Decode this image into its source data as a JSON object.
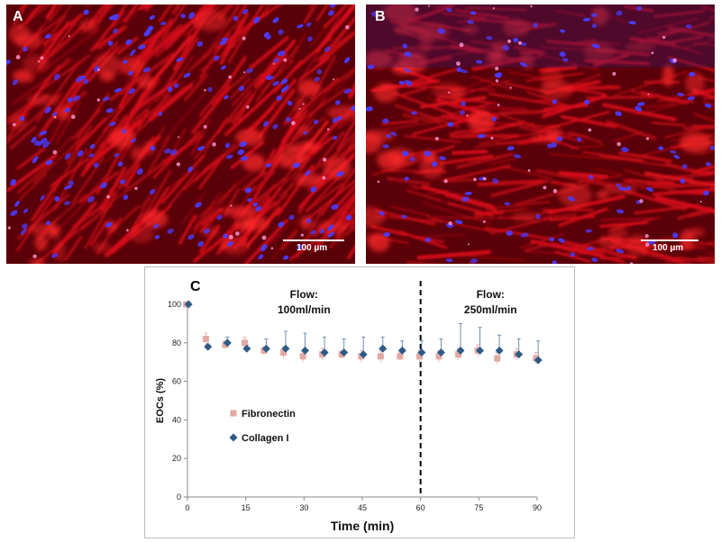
{
  "panels": {
    "a": {
      "letter": "A",
      "scale_label": "100 µm"
    },
    "b": {
      "letter": "B",
      "scale_label": "100 µm"
    },
    "c": {
      "letter": "C"
    }
  },
  "colors": {
    "micrograph_red": "#e8121c",
    "micrograph_dark": "#5a0008",
    "nucleus_blue": "#4a3cff",
    "fibronectin": "#e3a9a3",
    "collagen": "#2e5a87",
    "errorbar_fn": "#e8b6b0",
    "errorbar_col": "#6f8fb3"
  },
  "chart_data": {
    "type": "scatter",
    "xlabel": "Time (min)",
    "ylabel": "EOCs (%)",
    "xlim": [
      0,
      90
    ],
    "ylim": [
      0,
      100
    ],
    "xticks": [
      0,
      15,
      30,
      45,
      60,
      75,
      90
    ],
    "yticks": [
      0,
      20,
      40,
      60,
      80,
      100
    ],
    "divider_x": 60,
    "annotations": [
      {
        "line1": "Flow:",
        "line2": "100ml/min",
        "x": 30
      },
      {
        "line1": "Flow:",
        "line2": "250ml/min",
        "x": 78
      }
    ],
    "series": [
      {
        "name": "Fibronectin",
        "marker": "square",
        "x": [
          0,
          5,
          10,
          15,
          20,
          25,
          30,
          35,
          40,
          45,
          50,
          55,
          60,
          65,
          70,
          75,
          80,
          85,
          90
        ],
        "y": [
          100,
          82,
          79,
          80,
          76,
          75,
          73,
          74,
          74,
          73,
          73,
          73,
          73,
          73,
          74,
          76,
          72,
          74,
          72
        ],
        "err": [
          0,
          3,
          2,
          3,
          2,
          3,
          3,
          3,
          2,
          3,
          3,
          2,
          3,
          3,
          3,
          3,
          3,
          3,
          3
        ]
      },
      {
        "name": "Collagen I",
        "marker": "diamond",
        "x": [
          0,
          5,
          10,
          15,
          20,
          25,
          30,
          35,
          40,
          45,
          50,
          55,
          60,
          65,
          70,
          75,
          80,
          85,
          90
        ],
        "y": [
          100,
          78,
          80,
          77,
          77,
          77,
          76,
          75,
          75,
          74,
          77,
          76,
          75,
          75,
          76,
          76,
          76,
          74,
          71
        ],
        "err": [
          0,
          0,
          3,
          2,
          5,
          9,
          9,
          8,
          7,
          9,
          6,
          5,
          6,
          7,
          14,
          12,
          8,
          8,
          10
        ]
      }
    ]
  }
}
